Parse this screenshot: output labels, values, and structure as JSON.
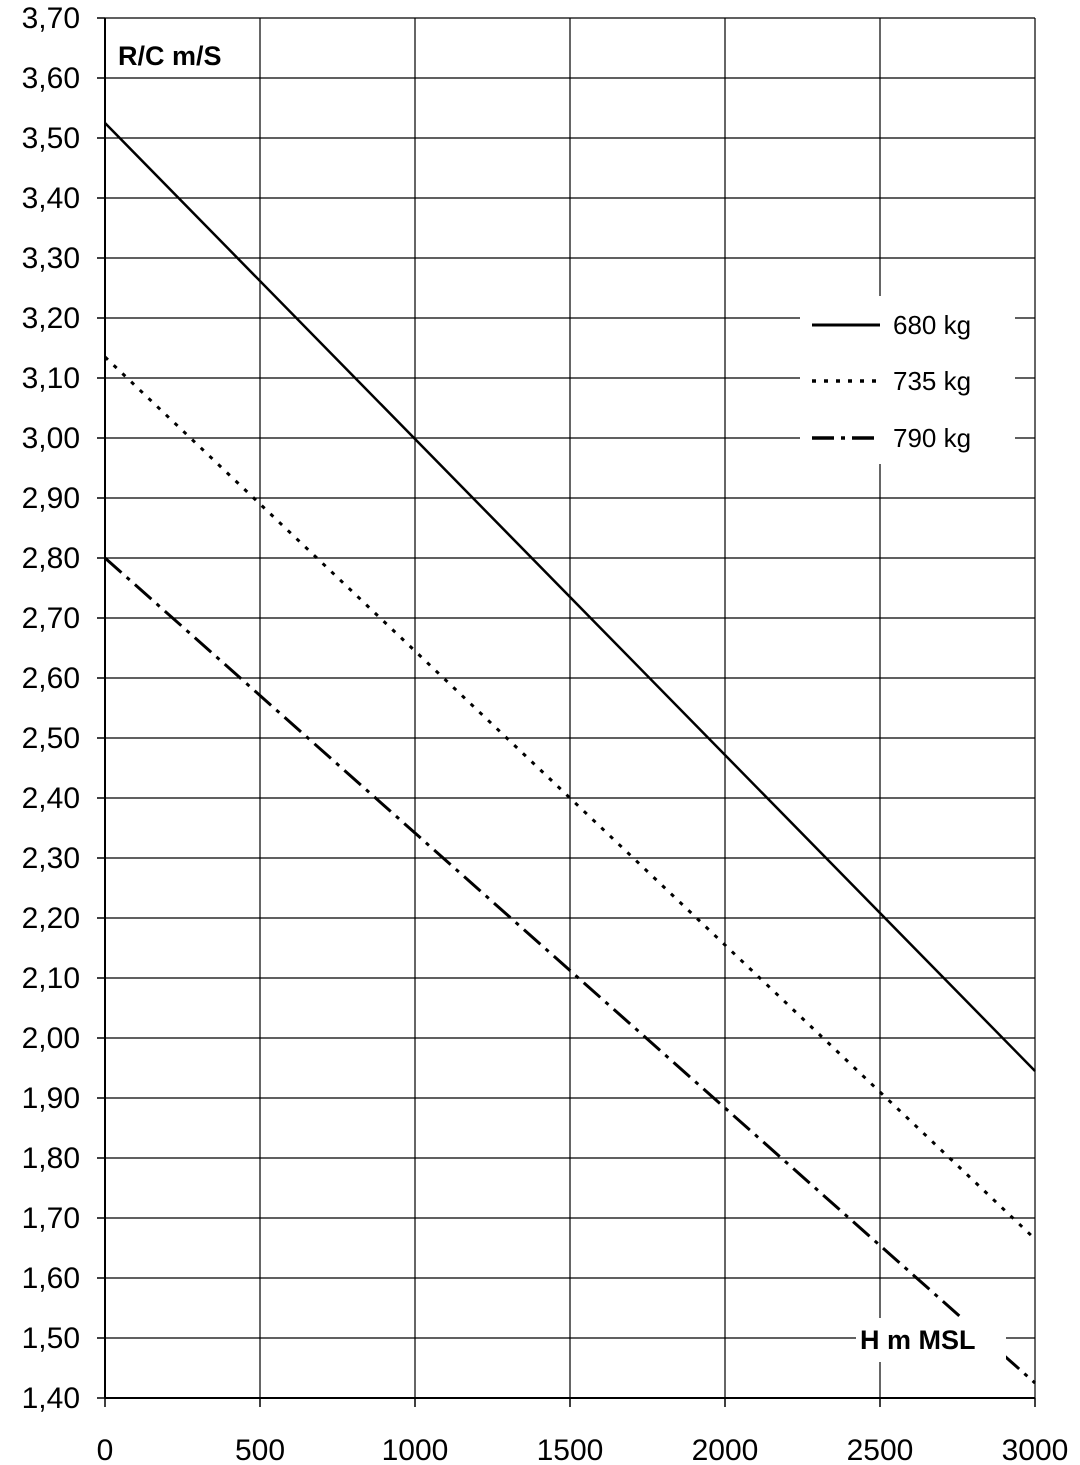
{
  "chart_data": {
    "type": "line",
    "ylabel": "R/C m/S",
    "xlabel": "H m MSL",
    "xlim": [
      0,
      3000
    ],
    "ylim": [
      1.4,
      3.7
    ],
    "x_ticks": [
      0,
      500,
      1000,
      1500,
      2000,
      2500,
      3000
    ],
    "x_tick_labels": [
      "0",
      "500",
      "1000",
      "1500",
      "2000",
      "2500",
      "3000"
    ],
    "y_ticks": [
      1.4,
      1.5,
      1.6,
      1.7,
      1.8,
      1.9,
      2.0,
      2.1,
      2.2,
      2.3,
      2.4,
      2.5,
      2.6,
      2.7,
      2.8,
      2.9,
      3.0,
      3.1,
      3.2,
      3.3,
      3.4,
      3.5,
      3.6,
      3.7
    ],
    "y_tick_labels": [
      "1,40",
      "1,50",
      "1,60",
      "1,70",
      "1,80",
      "1,90",
      "2,00",
      "2,10",
      "2,20",
      "2,30",
      "2,40",
      "2,50",
      "2,60",
      "2,70",
      "2,80",
      "2,90",
      "3,00",
      "3,10",
      "3,20",
      "3,30",
      "3,40",
      "3,50",
      "3,60",
      "3,70"
    ],
    "grid": true,
    "legend_position": "right",
    "series": [
      {
        "name": "680 kg",
        "style": "solid",
        "x": [
          0,
          3000
        ],
        "y": [
          3.525,
          1.945
        ]
      },
      {
        "name": "735 kg",
        "style": "dotted",
        "x": [
          0,
          3000
        ],
        "y": [
          3.135,
          1.665
        ]
      },
      {
        "name": "790 kg",
        "style": "dash-dot",
        "x": [
          0,
          3000
        ],
        "y": [
          2.8,
          1.425
        ]
      }
    ],
    "line_color": "#000000",
    "grid_color": "#000000"
  }
}
